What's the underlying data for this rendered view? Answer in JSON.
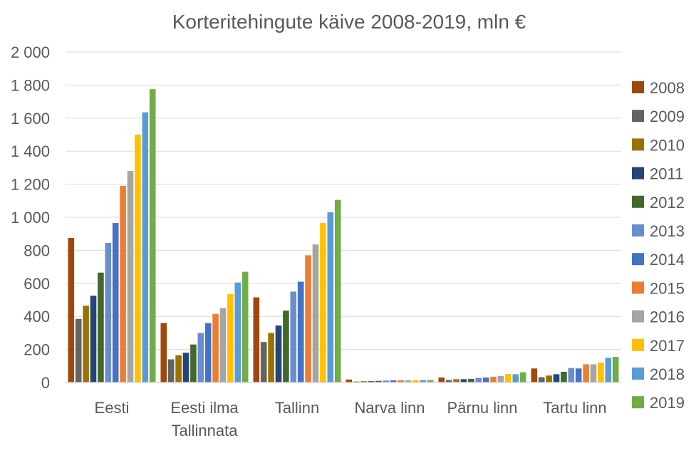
{
  "chart_data": {
    "type": "bar",
    "title": "Korteritehingute käive 2008-2019, mln €",
    "xlabel": "",
    "ylabel": "",
    "ylim": [
      0,
      2000
    ],
    "y_ticks": [
      0,
      200,
      400,
      600,
      800,
      1000,
      1200,
      1400,
      1600,
      1800,
      2000
    ],
    "y_tick_labels": [
      "0",
      "200",
      "400",
      "600",
      "800",
      "1 000",
      "1 200",
      "1 400",
      "1 600",
      "1 800",
      "2 000"
    ],
    "categories": [
      "Eesti",
      "Eesti ilma Tallinnata",
      "Tallinn",
      "Narva linn",
      "Pärnu linn",
      "Tartu linn"
    ],
    "category_lines": [
      [
        "Eesti"
      ],
      [
        "Eesti ilma",
        "Tallinnata"
      ],
      [
        "Tallinn"
      ],
      [
        "Narva linn"
      ],
      [
        "Pärnu linn"
      ],
      [
        "Tartu linn"
      ]
    ],
    "grid": true,
    "legend_position": "right",
    "series": [
      {
        "name": "2008",
        "color": "#9E480E",
        "values": [
          875,
          360,
          515,
          18,
          30,
          85
        ]
      },
      {
        "name": "2009",
        "color": "#636363",
        "values": [
          385,
          140,
          245,
          6,
          15,
          32
        ]
      },
      {
        "name": "2010",
        "color": "#997300",
        "values": [
          465,
          165,
          300,
          8,
          20,
          42
        ]
      },
      {
        "name": "2011",
        "color": "#264478",
        "values": [
          525,
          180,
          345,
          8,
          20,
          50
        ]
      },
      {
        "name": "2012",
        "color": "#43682B",
        "values": [
          665,
          230,
          435,
          10,
          22,
          65
        ]
      },
      {
        "name": "2013",
        "color": "#698ED0",
        "values": [
          845,
          300,
          550,
          12,
          28,
          88
        ]
      },
      {
        "name": "2014",
        "color": "#4472C4",
        "values": [
          965,
          360,
          610,
          13,
          30,
          85
        ]
      },
      {
        "name": "2015",
        "color": "#ED7D31",
        "values": [
          1190,
          415,
          770,
          14,
          35,
          110
        ]
      },
      {
        "name": "2016",
        "color": "#A5A5A5",
        "values": [
          1280,
          450,
          835,
          14,
          40,
          110
        ]
      },
      {
        "name": "2017",
        "color": "#FFC000",
        "values": [
          1500,
          535,
          965,
          15,
          52,
          120
        ]
      },
      {
        "name": "2018",
        "color": "#5B9BD5",
        "values": [
          1635,
          605,
          1030,
          15,
          50,
          150
        ]
      },
      {
        "name": "2019",
        "color": "#70AD47",
        "values": [
          1775,
          670,
          1105,
          15,
          62,
          155
        ]
      }
    ]
  }
}
